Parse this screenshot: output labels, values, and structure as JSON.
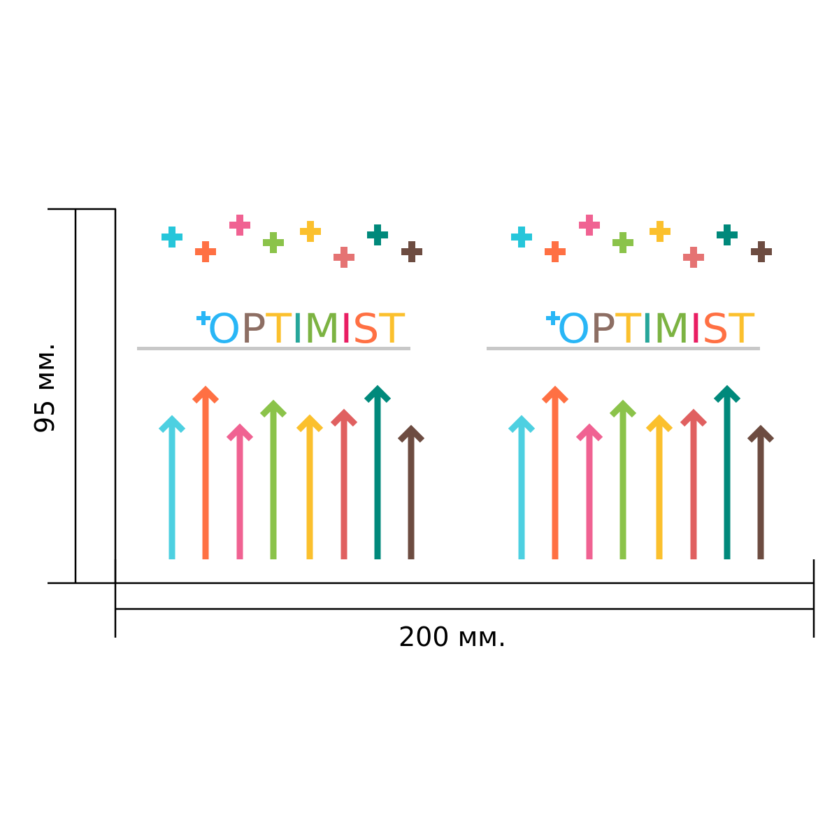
{
  "dimensions": {
    "width_label": "200 мм.",
    "height_label": "95 мм."
  },
  "logo": {
    "letters": [
      {
        "char": "O",
        "color": "#29B6F6"
      },
      {
        "char": "P",
        "color": "#8D6E63"
      },
      {
        "char": "T",
        "color": "#FBC02D"
      },
      {
        "char": "I",
        "color": "#26A69A"
      },
      {
        "char": "M",
        "color": "#7CB342"
      },
      {
        "char": "I",
        "color": "#E91E63"
      },
      {
        "char": "S",
        "color": "#FF7043"
      },
      {
        "char": "T",
        "color": "#FBC02D"
      }
    ],
    "plus_color": "#29B6F6",
    "underline_color": "#C8C8C8"
  },
  "plus_colors": [
    "#26C6DA",
    "#FF7043",
    "#F06292",
    "#8BC34A",
    "#FBC02D",
    "#E57373",
    "#00897B",
    "#6D4C41"
  ],
  "arrow_colors": [
    "#4DD0E1",
    "#FF7043",
    "#F06292",
    "#8BC34A",
    "#FBC02D",
    "#E06060",
    "#00897B",
    "#6D4C41"
  ],
  "panel_count": 2
}
